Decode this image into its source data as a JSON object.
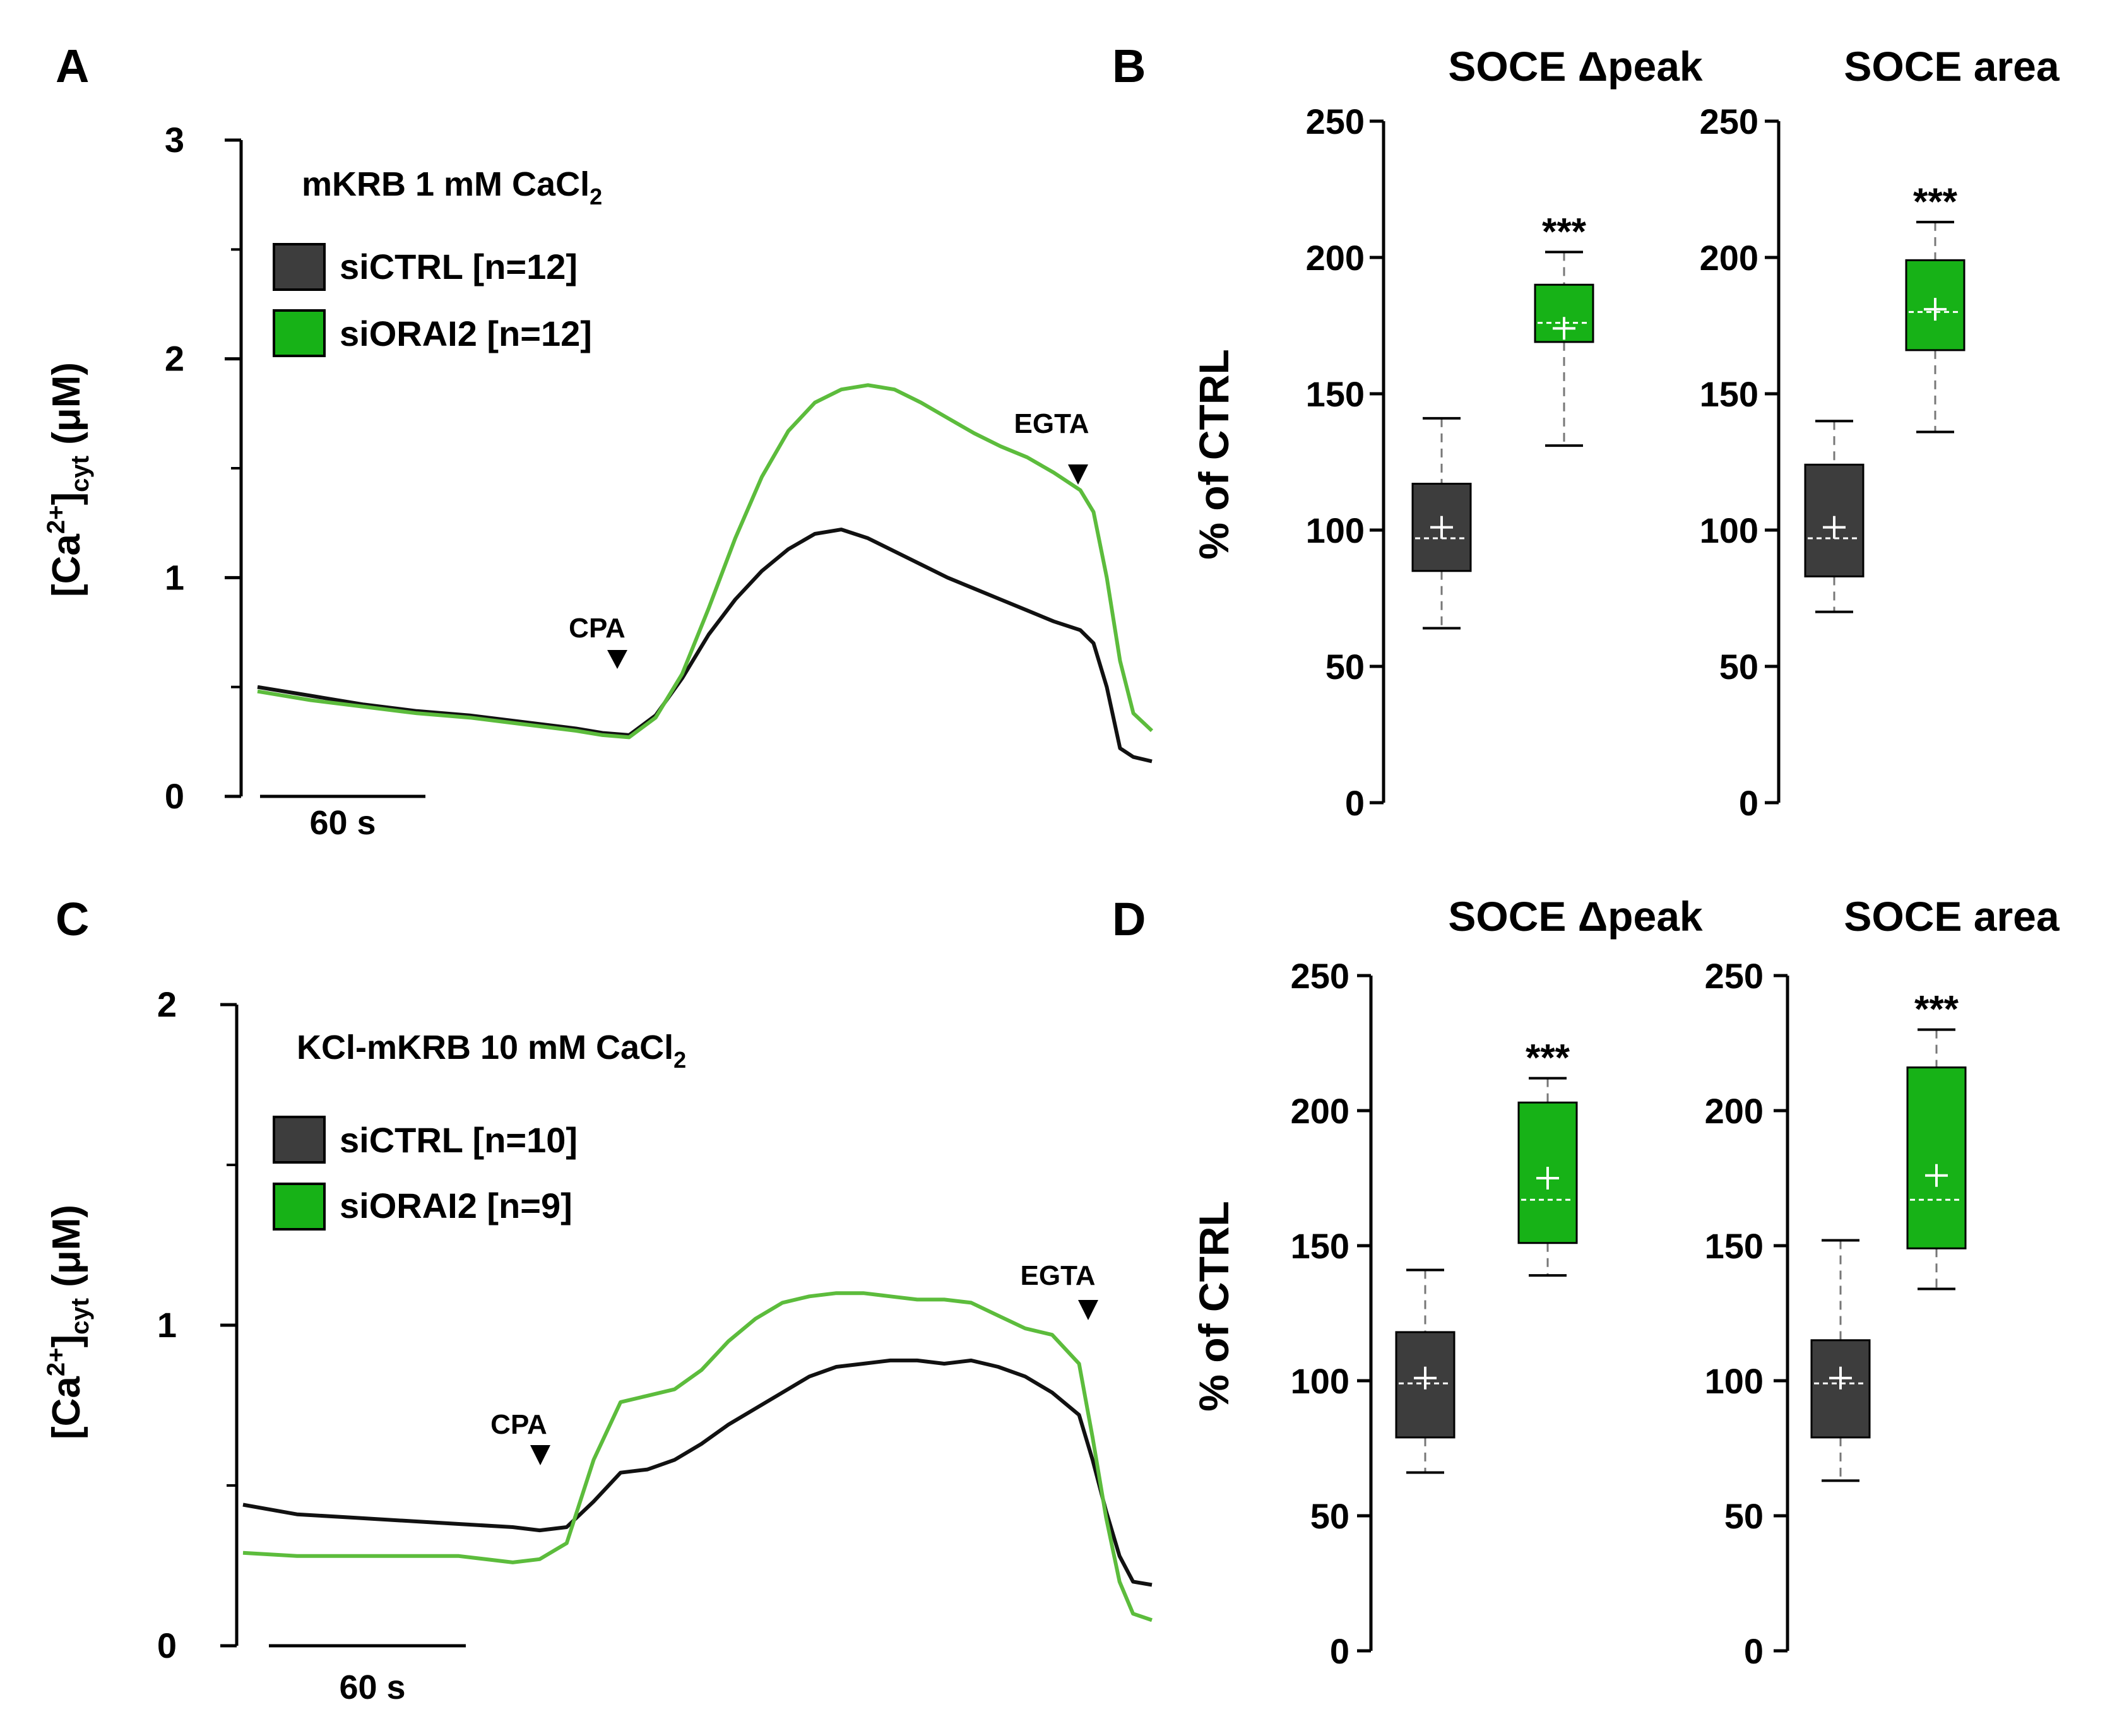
{
  "panels": {
    "A": {
      "letter": "A",
      "condition": "mKRB 1 mM CaCl",
      "condition_sub": "2",
      "legend": [
        "siCTRL [n=12]",
        "siORAI2 [n=12]"
      ],
      "markers": [
        "CPA",
        "EGTA"
      ],
      "scalebar": "60 s"
    },
    "B": {
      "letter": "B"
    },
    "C": {
      "letter": "C",
      "condition": "KCl-mKRB 10 mM CaCl",
      "condition_sub": "2",
      "legend": [
        "siCTRL [n=10]",
        "siORAI2 [n=9]"
      ],
      "markers": [
        "CPA",
        "EGTA"
      ],
      "scalebar": "60 s"
    },
    "D": {
      "letter": "D"
    }
  },
  "colors": {
    "ctrl": "#3d3d3d",
    "orai2": "#17b217",
    "ctrl_line": "#111111",
    "orai2_line": "#5cbc3c"
  },
  "chart_data": [
    {
      "id": "A",
      "type": "line",
      "ylabel": "[Ca2+]cyt (μM)",
      "ylim": [
        0,
        3
      ],
      "yticks": [
        0,
        1,
        2,
        3
      ],
      "x_unit": "s",
      "xlim": [
        0,
        337
      ],
      "series": [
        {
          "name": "siCTRL",
          "x": [
            0,
            20,
            40,
            60,
            80,
            100,
            120,
            130,
            140,
            150,
            160,
            170,
            180,
            190,
            200,
            210,
            220,
            230,
            240,
            250,
            260,
            270,
            280,
            290,
            300,
            310,
            315,
            320,
            325,
            330,
            337
          ],
          "y": [
            0.5,
            0.46,
            0.42,
            0.39,
            0.37,
            0.34,
            0.31,
            0.29,
            0.28,
            0.37,
            0.54,
            0.74,
            0.9,
            1.03,
            1.13,
            1.2,
            1.22,
            1.18,
            1.12,
            1.06,
            1.0,
            0.95,
            0.9,
            0.85,
            0.8,
            0.76,
            0.7,
            0.5,
            0.22,
            0.18,
            0.16
          ]
        },
        {
          "name": "siORAI2",
          "x": [
            0,
            20,
            40,
            60,
            80,
            100,
            120,
            130,
            140,
            150,
            160,
            170,
            180,
            190,
            200,
            210,
            220,
            230,
            240,
            250,
            260,
            270,
            280,
            290,
            300,
            310,
            315,
            320,
            325,
            330,
            337
          ],
          "y": [
            0.48,
            0.44,
            0.41,
            0.38,
            0.36,
            0.33,
            0.3,
            0.28,
            0.27,
            0.36,
            0.56,
            0.86,
            1.18,
            1.46,
            1.67,
            1.8,
            1.86,
            1.88,
            1.86,
            1.8,
            1.73,
            1.66,
            1.6,
            1.55,
            1.48,
            1.4,
            1.3,
            1.0,
            0.62,
            0.38,
            0.3
          ]
        }
      ],
      "annotations": [
        {
          "text": "CPA",
          "x": 140
        },
        {
          "text": "EGTA",
          "x": 310
        }
      ]
    },
    {
      "id": "B-peak",
      "type": "box",
      "title": "SOCE Δpeak",
      "ylabel": "% of CTRL",
      "ylim": [
        0,
        250
      ],
      "yticks": [
        0,
        50,
        100,
        150,
        200,
        250
      ],
      "boxes": [
        {
          "name": "siCTRL",
          "whisker_low": 64,
          "q1": 85,
          "median": 97,
          "mean": 101,
          "q3": 117,
          "whisker_high": 141
        },
        {
          "name": "siORAI2",
          "whisker_low": 131,
          "q1": 169,
          "median": 176,
          "mean": 174,
          "q3": 190,
          "whisker_high": 202,
          "significance": "***"
        }
      ]
    },
    {
      "id": "B-area",
      "type": "box",
      "title": "SOCE area",
      "ylabel": "% of CTRL",
      "ylim": [
        0,
        250
      ],
      "yticks": [
        0,
        50,
        100,
        150,
        200,
        250
      ],
      "boxes": [
        {
          "name": "siCTRL",
          "whisker_low": 70,
          "q1": 83,
          "median": 97,
          "mean": 101,
          "q3": 124,
          "whisker_high": 140
        },
        {
          "name": "siORAI2",
          "whisker_low": 136,
          "q1": 166,
          "median": 180,
          "mean": 181,
          "q3": 199,
          "whisker_high": 213,
          "significance": "***"
        }
      ]
    },
    {
      "id": "C",
      "type": "line",
      "ylabel": "[Ca2+]cyt (μM)",
      "ylim": [
        0,
        2
      ],
      "yticks": [
        0,
        1,
        2
      ],
      "x_unit": "s",
      "xlim": [
        0,
        337
      ],
      "series": [
        {
          "name": "siCTRL",
          "x": [
            0,
            20,
            40,
            60,
            80,
            100,
            110,
            120,
            130,
            140,
            150,
            160,
            170,
            180,
            190,
            200,
            210,
            220,
            230,
            240,
            250,
            260,
            270,
            280,
            290,
            300,
            310,
            315,
            320,
            325,
            330,
            337
          ],
          "y": [
            0.44,
            0.41,
            0.4,
            0.39,
            0.38,
            0.37,
            0.36,
            0.37,
            0.45,
            0.54,
            0.55,
            0.58,
            0.63,
            0.69,
            0.74,
            0.79,
            0.84,
            0.87,
            0.88,
            0.89,
            0.89,
            0.88,
            0.89,
            0.87,
            0.84,
            0.79,
            0.72,
            0.58,
            0.42,
            0.28,
            0.2,
            0.19
          ]
        },
        {
          "name": "siORAI2",
          "x": [
            0,
            20,
            40,
            60,
            80,
            100,
            110,
            120,
            130,
            140,
            150,
            160,
            170,
            180,
            190,
            200,
            210,
            220,
            230,
            240,
            250,
            260,
            270,
            280,
            290,
            300,
            310,
            315,
            320,
            325,
            330,
            337
          ],
          "y": [
            0.29,
            0.28,
            0.28,
            0.28,
            0.28,
            0.26,
            0.27,
            0.32,
            0.58,
            0.76,
            0.78,
            0.8,
            0.86,
            0.95,
            1.02,
            1.07,
            1.09,
            1.1,
            1.1,
            1.09,
            1.08,
            1.08,
            1.07,
            1.03,
            0.99,
            0.97,
            0.88,
            0.65,
            0.4,
            0.2,
            0.1,
            0.08
          ]
        }
      ],
      "annotations": [
        {
          "text": "CPA",
          "x": 110
        },
        {
          "text": "EGTA",
          "x": 315
        }
      ]
    },
    {
      "id": "D-peak",
      "type": "box",
      "title": "SOCE Δpeak",
      "ylabel": "% of CTRL",
      "ylim": [
        0,
        250
      ],
      "yticks": [
        0,
        50,
        100,
        150,
        200,
        250
      ],
      "boxes": [
        {
          "name": "siCTRL",
          "whisker_low": 66,
          "q1": 79,
          "median": 99,
          "mean": 101,
          "q3": 118,
          "whisker_high": 141
        },
        {
          "name": "siORAI2",
          "whisker_low": 139,
          "q1": 151,
          "median": 167,
          "mean": 175,
          "q3": 203,
          "whisker_high": 212,
          "significance": "***"
        }
      ]
    },
    {
      "id": "D-area",
      "type": "box",
      "title": "SOCE area",
      "ylabel": "% of CTRL",
      "ylim": [
        0,
        250
      ],
      "yticks": [
        0,
        50,
        100,
        150,
        200,
        250
      ],
      "boxes": [
        {
          "name": "siCTRL",
          "whisker_low": 63,
          "q1": 79,
          "median": 99,
          "mean": 101,
          "q3": 115,
          "whisker_high": 152
        },
        {
          "name": "siORAI2",
          "whisker_low": 134,
          "q1": 149,
          "median": 167,
          "mean": 176,
          "q3": 216,
          "whisker_high": 230,
          "significance": "***"
        }
      ]
    }
  ]
}
